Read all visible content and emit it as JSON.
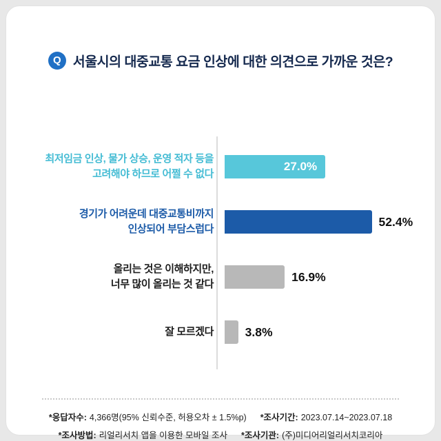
{
  "title": {
    "badge": "Q",
    "text": "서울시의 대중교통 요금 인상에 대한 의견으로 가까운 것은?"
  },
  "chart_data": {
    "type": "bar",
    "orientation": "horizontal",
    "title": "서울시의 대중교통 요금 인상에 대한 의견으로 가까운 것은?",
    "unit": "%",
    "categories": [
      "최저임금 인상, 물가 상승, 운영 적자 등을 고려해야 하므로 어쩔 수 없다",
      "경기가 어려운데 대중교통비까지 인상되어 부담스럽다",
      "올리는 것은 이해하지만, 너무 많이 올리는 것 같다",
      "잘 모르겠다"
    ],
    "categories_lines": [
      [
        "최저임금 인상, 물가 상승, 운영 적자 등을",
        "고려해야 하므로 어쩔 수 없다"
      ],
      [
        "경기가 어려운데 대중교통비까지",
        "인상되어 부담스럽다"
      ],
      [
        "올리는 것은 이해하지만,",
        "너무 많이 올리는 것 같다"
      ],
      [
        "잘 모르겠다"
      ]
    ],
    "values": [
      27.0,
      52.4,
      16.9,
      3.8
    ],
    "value_labels": [
      "27.0%",
      "52.4%",
      "16.9%",
      "3.8%"
    ],
    "bar_colors": [
      "#57c7da",
      "#1c5ba8",
      "#b8b8b8",
      "#b8b8b8"
    ],
    "label_colors": [
      "#45bcd4",
      "#1c5ba8",
      "#1c1c1c",
      "#1c1c1c"
    ],
    "bar_widths": [
      "52%",
      "76%",
      "31%",
      "7%"
    ],
    "xlim": [
      0,
      60
    ],
    "grid": false,
    "legend": false
  },
  "footer": {
    "resp_label": "*응답자수:",
    "resp_value": "4,366명(95% 신뢰수준, 허용오차 ± 1.5%p)",
    "period_label": "*조사기간:",
    "period_value": "2023.07.14~2023.07.18",
    "method_label": "*조사방법:",
    "method_value": "리얼리서치 앱을 이용한 모바일 조사",
    "org_label": "*조사기관:",
    "org_value": "(주)미디어리얼리서치코리아"
  }
}
